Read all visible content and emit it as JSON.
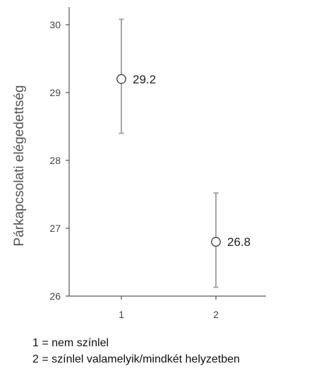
{
  "chart_data": {
    "type": "scatter",
    "ylabel": "Párkapcsolati elégedettség",
    "ylim": [
      26,
      30.2
    ],
    "yticks": [
      26,
      27,
      28,
      29,
      30
    ],
    "categories": [
      "1",
      "2"
    ],
    "points": [
      {
        "x": "1",
        "value": 29.2,
        "label": "29.2",
        "ci_low": 28.4,
        "ci_high": 30.08
      },
      {
        "x": "2",
        "value": 26.8,
        "label": "26.8",
        "ci_low": 26.13,
        "ci_high": 27.52
      }
    ],
    "error_bars": true,
    "grid": false
  },
  "legend": [
    "1 = nem színlel",
    "2 = színlel valamelyik/mindkét helyzetben"
  ],
  "colors": {
    "axis": "#333333",
    "error_bar": "#a6a6a6",
    "marker_stroke": "#444444",
    "marker_fill": "#ffffff"
  }
}
